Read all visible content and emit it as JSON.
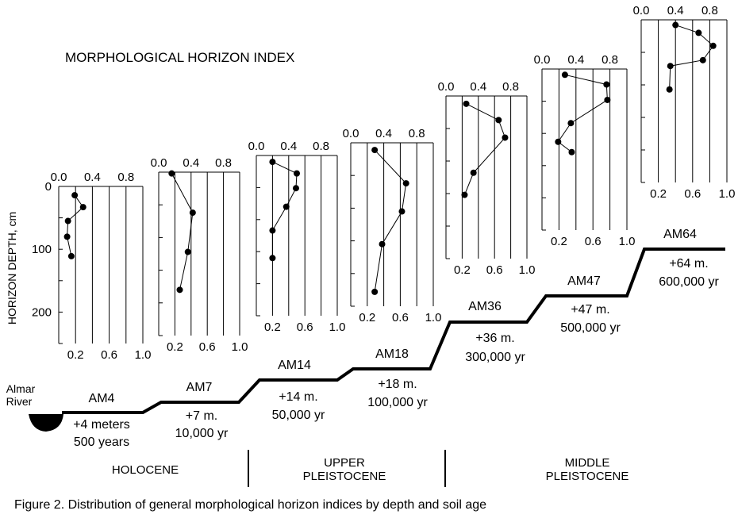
{
  "figure": {
    "title": "MORPHOLOGICAL HORIZON INDEX",
    "caption": "Figure 2. Distribution of general morphological horizon indices by depth and soil age",
    "y_axis_label": "HORIZON DEPTH, cm",
    "y_tick_labels": [
      "0",
      "100",
      "200"
    ],
    "river_label": [
      "Almar",
      "River"
    ],
    "epochs": [
      {
        "lines": [
          "HOLOCENE"
        ]
      },
      {
        "lines": [
          "UPPER",
          "PLEISTOCENE"
        ]
      },
      {
        "lines": [
          "MIDDLE",
          "PLEISTOCENE"
        ]
      }
    ]
  },
  "chart_data": [
    {
      "type": "line",
      "site": "AM4",
      "elevation": "+4 meters",
      "age": "500 years",
      "x_top_ticks": [
        "0.0",
        "0.4",
        "0.8"
      ],
      "x_bottom_ticks": [
        "0.2",
        "0.6",
        "1.0"
      ],
      "xlim": [
        0.0,
        1.0
      ],
      "ylim": [
        0,
        250
      ],
      "points": [
        {
          "x": 0.19,
          "y": 14
        },
        {
          "x": 0.29,
          "y": 33
        },
        {
          "x": 0.11,
          "y": 55
        },
        {
          "x": 0.1,
          "y": 80
        },
        {
          "x": 0.15,
          "y": 111
        }
      ]
    },
    {
      "type": "line",
      "site": "AM7",
      "elevation": "+7 m.",
      "age": "10,000 yr",
      "x_top_ticks": [
        "0.0",
        "0.4",
        "0.8"
      ],
      "x_bottom_ticks": [
        "0.2",
        "0.6",
        "1.0"
      ],
      "xlim": [
        0.0,
        1.0
      ],
      "ylim": [
        0,
        250
      ],
      "points": [
        {
          "x": 0.16,
          "y": 2
        },
        {
          "x": 0.42,
          "y": 62
        },
        {
          "x": 0.36,
          "y": 122
        },
        {
          "x": 0.26,
          "y": 180
        }
      ]
    },
    {
      "type": "line",
      "site": "AM14",
      "elevation": "+14 m.",
      "age": "50,000 yr",
      "x_top_ticks": [
        "0.0",
        "0.4",
        "0.8"
      ],
      "x_bottom_ticks": [
        "0.2",
        "0.6",
        "1.0"
      ],
      "xlim": [
        0.0,
        1.0
      ],
      "ylim": [
        0,
        250
      ],
      "points": [
        {
          "x": 0.2,
          "y": 10
        },
        {
          "x": 0.5,
          "y": 28
        },
        {
          "x": 0.49,
          "y": 51
        },
        {
          "x": 0.37,
          "y": 80
        },
        {
          "x": 0.2,
          "y": 117
        },
        {
          "x": 0.2,
          "y": 160
        }
      ]
    },
    {
      "type": "line",
      "site": "AM18",
      "elevation": "+18 m.",
      "age": "100,000 yr",
      "x_top_ticks": [
        "0.0",
        "0.4",
        "0.8"
      ],
      "x_bottom_ticks": [
        "0.2",
        "0.6",
        "1.0"
      ],
      "xlim": [
        0.0,
        1.0
      ],
      "ylim": [
        0,
        250
      ],
      "points": [
        {
          "x": 0.29,
          "y": 11
        },
        {
          "x": 0.67,
          "y": 62
        },
        {
          "x": 0.62,
          "y": 105
        },
        {
          "x": 0.38,
          "y": 155
        },
        {
          "x": 0.29,
          "y": 228
        }
      ]
    },
    {
      "type": "line",
      "site": "AM36",
      "elevation": "+36 m.",
      "age": "300,000 yr",
      "x_top_ticks": [
        "0.0",
        "0.4",
        "0.8"
      ],
      "x_bottom_ticks": [
        "0.2",
        "0.6",
        "1.0"
      ],
      "xlim": [
        0.0,
        1.0
      ],
      "ylim": [
        0,
        250
      ],
      "points": [
        {
          "x": 0.25,
          "y": 12
        },
        {
          "x": 0.65,
          "y": 37
        },
        {
          "x": 0.73,
          "y": 64
        },
        {
          "x": 0.34,
          "y": 118
        },
        {
          "x": 0.23,
          "y": 152
        }
      ]
    },
    {
      "type": "line",
      "site": "AM47",
      "elevation": "+47 m.",
      "age": "500,000 yr",
      "x_top_ticks": [
        "0.0",
        "0.4",
        "0.8"
      ],
      "x_bottom_ticks": [
        "0.2",
        "0.6",
        "1.0"
      ],
      "xlim": [
        0.0,
        1.0
      ],
      "ylim": [
        0,
        250
      ],
      "points": [
        {
          "x": 0.27,
          "y": 9
        },
        {
          "x": 0.76,
          "y": 24
        },
        {
          "x": 0.77,
          "y": 48
        },
        {
          "x": 0.34,
          "y": 84
        },
        {
          "x": 0.19,
          "y": 113
        },
        {
          "x": 0.35,
          "y": 129
        }
      ]
    },
    {
      "type": "line",
      "site": "AM64",
      "elevation": "+64 m.",
      "age": "600,000 yr",
      "x_top_ticks": [
        "0.0",
        "0.4",
        "0.8"
      ],
      "x_bottom_ticks": [
        "0.2",
        "0.6",
        "1.0"
      ],
      "xlim": [
        0.0,
        1.0
      ],
      "ylim": [
        0,
        250
      ],
      "points": [
        {
          "x": 0.4,
          "y": 8
        },
        {
          "x": 0.67,
          "y": 20
        },
        {
          "x": 0.84,
          "y": 40
        },
        {
          "x": 0.72,
          "y": 62
        },
        {
          "x": 0.34,
          "y": 71
        },
        {
          "x": 0.33,
          "y": 107
        }
      ]
    }
  ]
}
